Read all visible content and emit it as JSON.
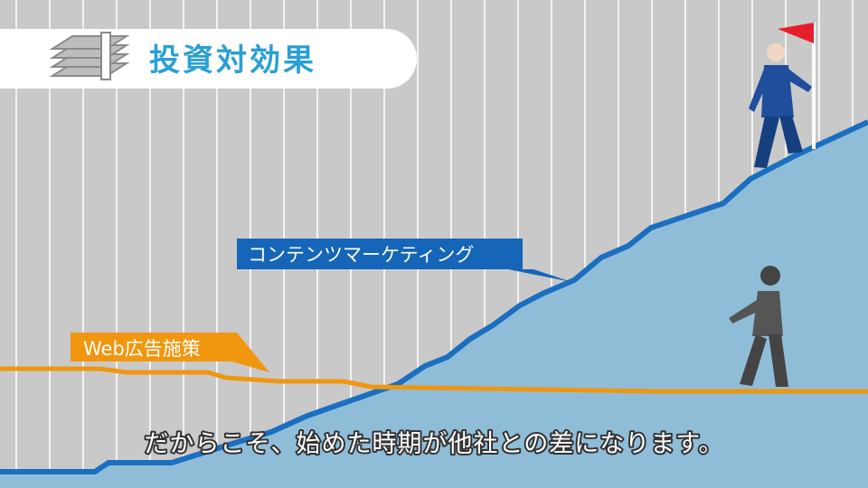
{
  "header": {
    "title": "投資対効果"
  },
  "labels": {
    "content_marketing": "コンテンツマーケティング",
    "web_ads": "Web広告施策"
  },
  "subtitle": "だからこそ、始めた時期が他社との差になります。"
}
